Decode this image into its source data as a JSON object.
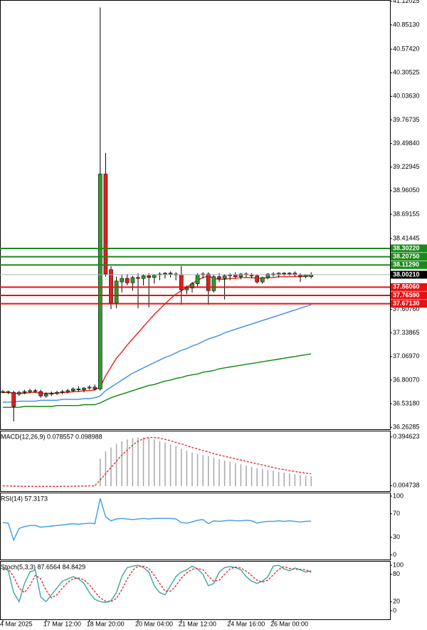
{
  "chart_data": [
    {
      "type": "candlestick",
      "categories": [
        "4 Mar 2025",
        null,
        null,
        null,
        null,
        null,
        null,
        null,
        "17 Mar 12:00",
        null,
        null,
        null,
        null,
        null,
        null,
        null,
        "18 Mar 20:00",
        null,
        null,
        null,
        null,
        null,
        null,
        null,
        null,
        "20 Mar 04:00",
        null,
        null,
        null,
        null,
        null,
        null,
        null,
        "21 Mar 12:00",
        null,
        null,
        null,
        null,
        null,
        null,
        null,
        null,
        "24 Mar 16:00",
        null,
        null,
        null,
        null,
        null,
        null,
        null,
        "26 Mar 00:00",
        null,
        null,
        null,
        null,
        null,
        null,
        null
      ],
      "open": [
        36.67,
        36.66,
        36.66,
        36.64,
        36.66,
        36.67,
        36.68,
        36.67,
        36.62,
        36.64,
        36.65,
        36.66,
        36.67,
        36.68,
        36.7,
        36.69,
        36.71,
        36.72,
        36.7,
        39.15,
        38.06,
        37.68,
        37.92,
        37.96,
        37.91,
        37.97,
        37.96,
        37.99,
        37.97,
        38.0,
        38.01,
        38.02,
        38.01,
        38.0,
        37.83,
        37.85,
        37.9,
        38.0,
        38.01,
        37.82,
        37.98,
        37.96,
        37.99,
        38.0,
        37.98,
        38.01,
        38.0,
        37.99,
        37.92,
        37.97,
        38.01,
        38.0,
        38.02,
        38.01,
        38.02,
        38.0,
        37.98,
        37.98
      ],
      "high": [
        36.69,
        36.68,
        36.68,
        36.68,
        36.69,
        36.7,
        36.7,
        36.69,
        36.66,
        36.67,
        36.68,
        36.69,
        36.7,
        36.72,
        36.73,
        36.72,
        36.74,
        36.75,
        41.05,
        39.39,
        38.1,
        37.98,
        38.0,
        38.01,
        37.99,
        38.02,
        38.01,
        38.02,
        38.01,
        38.03,
        38.03,
        38.04,
        38.03,
        38.1,
        37.88,
        37.92,
        38.02,
        38.03,
        38.03,
        38.0,
        38.02,
        38.01,
        38.02,
        38.03,
        38.02,
        38.03,
        38.02,
        38.01,
        37.98,
        38.02,
        38.03,
        38.03,
        38.03,
        38.03,
        38.04,
        38.02,
        38.01,
        38.03
      ],
      "low": [
        36.65,
        36.64,
        36.33,
        36.62,
        36.64,
        36.65,
        36.66,
        36.6,
        36.6,
        36.62,
        36.63,
        36.64,
        36.65,
        36.66,
        36.67,
        36.66,
        36.69,
        36.68,
        36.68,
        37.98,
        37.61,
        37.62,
        37.8,
        37.88,
        37.82,
        37.62,
        37.88,
        37.63,
        37.9,
        37.94,
        37.96,
        37.97,
        37.94,
        37.66,
        37.78,
        37.8,
        37.86,
        37.96,
        37.66,
        37.8,
        37.92,
        37.72,
        37.94,
        37.96,
        37.95,
        37.97,
        37.96,
        37.9,
        37.9,
        37.95,
        37.98,
        37.97,
        37.99,
        37.99,
        37.98,
        37.92,
        37.96,
        37.96
      ],
      "close": [
        36.66,
        36.67,
        36.5,
        36.66,
        36.67,
        36.68,
        36.67,
        36.62,
        36.64,
        36.65,
        36.66,
        36.67,
        36.68,
        36.7,
        36.69,
        36.71,
        36.72,
        36.7,
        39.15,
        38.01,
        37.68,
        37.93,
        37.96,
        37.91,
        37.97,
        37.96,
        37.99,
        37.97,
        38.0,
        38.01,
        38.02,
        38.01,
        38.0,
        37.83,
        37.85,
        37.9,
        38.0,
        38.01,
        37.82,
        37.98,
        37.96,
        37.99,
        38.0,
        37.98,
        38.01,
        38.0,
        37.99,
        37.92,
        37.97,
        38.01,
        38.0,
        38.02,
        38.01,
        38.02,
        38.0,
        37.98,
        38.0,
        38.0021
      ],
      "up_color": "#2e9e2e",
      "down_color": "#e02020",
      "lines": [
        {
          "color": "#e8201a",
          "values": [
            36.66,
            36.66,
            36.65,
            36.65,
            36.65,
            36.66,
            36.66,
            36.65,
            36.65,
            36.65,
            36.65,
            36.66,
            36.66,
            36.67,
            36.67,
            36.68,
            36.68,
            36.69,
            36.72,
            36.85,
            36.95,
            37.05,
            37.12,
            37.2,
            37.27,
            37.34,
            37.41,
            37.48,
            37.55,
            37.61,
            37.67,
            37.73,
            37.78,
            37.82,
            37.86,
            37.9,
            37.94,
            37.97,
            37.99,
            37.96,
            37.95,
            37.95,
            37.96,
            37.96,
            37.97,
            37.97,
            37.97,
            37.96,
            37.96,
            37.97,
            37.97,
            37.98,
            37.98,
            37.98,
            37.98,
            37.98,
            37.99,
            37.99
          ]
        },
        {
          "color": "#3a8ee6",
          "values": [
            36.55,
            36.55,
            36.55,
            36.56,
            36.56,
            36.56,
            36.56,
            36.57,
            36.57,
            36.57,
            36.57,
            36.58,
            36.58,
            36.58,
            36.58,
            36.59,
            36.59,
            36.6,
            36.62,
            36.68,
            36.72,
            36.76,
            36.8,
            36.84,
            36.88,
            36.91,
            36.94,
            36.97,
            37.0,
            37.03,
            37.06,
            37.08,
            37.11,
            37.14,
            37.16,
            37.19,
            37.21,
            37.24,
            37.27,
            37.29,
            37.31,
            37.34,
            37.36,
            37.38,
            37.4,
            37.42,
            37.44,
            37.46,
            37.48,
            37.5,
            37.52,
            37.54,
            37.56,
            37.58,
            37.6,
            37.62,
            37.64,
            37.66
          ]
        },
        {
          "color": "#0e8a0e",
          "values": [
            36.49,
            36.49,
            36.49,
            36.49,
            36.5,
            36.5,
            36.5,
            36.5,
            36.5,
            36.5,
            36.51,
            36.51,
            36.51,
            36.51,
            36.51,
            36.52,
            36.52,
            36.52,
            36.54,
            36.57,
            36.6,
            36.62,
            36.64,
            36.66,
            36.68,
            36.7,
            36.72,
            36.74,
            36.75,
            36.77,
            36.79,
            36.8,
            36.82,
            36.83,
            36.85,
            36.86,
            36.87,
            36.89,
            36.9,
            36.91,
            36.93,
            36.94,
            36.95,
            36.96,
            36.97,
            36.98,
            36.99,
            37.0,
            37.01,
            37.02,
            37.03,
            37.04,
            37.05,
            37.06,
            37.07,
            37.08,
            37.09,
            37.1
          ]
        }
      ],
      "levels": [
        {
          "value": 38.3022,
          "label": "38.30220",
          "color": "#1a8a1a"
        },
        {
          "value": 38.2075,
          "label": "38.20750",
          "color": "#1a8a1a"
        },
        {
          "value": 38.1129,
          "label": "38.11290",
          "color": "#1a8a1a"
        },
        {
          "value": 38.0021,
          "label": "38.00210",
          "color": "#000000",
          "line_color": "#b0b0b0"
        },
        {
          "value": 37.8606,
          "label": "37.86060",
          "color": "#e81010"
        },
        {
          "value": 37.7659,
          "label": "37.76590",
          "color": "#e81010"
        },
        {
          "value": 37.6713,
          "label": "37.67130",
          "color": "#e81010"
        }
      ],
      "ylim": [
        36.24,
        41.135
      ],
      "yticks": [
        41.12025,
        {
          "value": 40.8513,
          "label": "40.85130"
        },
        {
          "value": 40.5742,
          "label": "40.57420"
        },
        40.30525,
        {
          "value": 40.0363,
          "label": "40.03630"
        },
        39.76735,
        {
          "value": 39.4984,
          "label": "39.49840"
        },
        39.22945,
        {
          "value": 38.9605,
          "label": "38.96050"
        },
        38.69155,
        38.41445,
        {
          "value": 37.6076,
          "label": "37.60760"
        },
        37.33865,
        {
          "value": 37.0697,
          "label": "37.06970"
        },
        {
          "value": 36.8007,
          "label": "36.80070"
        },
        {
          "value": 36.5318,
          "label": "36.53180"
        },
        36.26285
      ]
    },
    {
      "type": "macd",
      "title": "MACD(12,26,9) 0.078557 0.098988",
      "series": [
        {
          "kind": "bar",
          "color": "#a8a8a8",
          "values": [
            0.003,
            0.002,
            -0.005,
            -0.006,
            -0.004,
            -0.003,
            -0.002,
            -0.003,
            -0.003,
            -0.002,
            -0.001,
            0.0,
            0.001,
            0.002,
            0.003,
            0.004,
            0.005,
            0.006,
            0.22,
            0.28,
            0.31,
            0.34,
            0.36,
            0.375,
            0.385,
            0.39,
            0.39,
            0.385,
            0.375,
            0.36,
            0.35,
            0.335,
            0.32,
            0.3,
            0.285,
            0.27,
            0.26,
            0.25,
            0.24,
            0.23,
            0.215,
            0.205,
            0.195,
            0.185,
            0.175,
            0.165,
            0.155,
            0.145,
            0.138,
            0.13,
            0.123,
            0.115,
            0.108,
            0.101,
            0.095,
            0.089,
            0.083,
            0.078557
          ]
        },
        {
          "kind": "line",
          "style": "dashed",
          "color": "#e03030",
          "values": [
            0.002,
            0.002,
            0.001,
            0.0,
            -0.001,
            -0.002,
            -0.002,
            -0.002,
            -0.002,
            -0.002,
            -0.002,
            -0.001,
            -0.001,
            0.0,
            0.001,
            0.001,
            0.002,
            0.003,
            0.05,
            0.1,
            0.15,
            0.2,
            0.25,
            0.29,
            0.33,
            0.36,
            0.38,
            0.39,
            0.39,
            0.385,
            0.375,
            0.365,
            0.35,
            0.34,
            0.325,
            0.31,
            0.3,
            0.285,
            0.275,
            0.26,
            0.25,
            0.24,
            0.23,
            0.22,
            0.21,
            0.2,
            0.19,
            0.18,
            0.17,
            0.16,
            0.15,
            0.14,
            0.133,
            0.125,
            0.118,
            0.111,
            0.105,
            0.098988
          ]
        }
      ],
      "ylim": [
        -0.04,
        0.445
      ],
      "yticks": [
        0.394623,
        0.004738
      ]
    },
    {
      "type": "oscillator",
      "title": "RSI(14) 57.3173",
      "series": [
        {
          "kind": "line",
          "color": "#3a9ee6",
          "values": [
            55,
            54,
            25,
            45,
            48,
            50,
            50,
            47,
            48,
            49,
            50,
            51,
            52,
            53,
            52,
            53,
            54,
            53,
            96,
            65,
            58,
            61,
            62,
            61,
            60,
            61,
            62,
            61,
            62,
            62,
            62,
            62,
            61,
            55,
            54,
            56,
            59,
            60,
            53,
            58,
            57,
            58,
            59,
            58,
            58,
            59,
            58,
            54,
            56,
            57,
            57,
            58,
            57,
            58,
            57,
            56,
            57,
            57.3173
          ]
        }
      ],
      "ylim": [
        -8,
        106
      ],
      "yticks": [
        100,
        70,
        30,
        0
      ]
    },
    {
      "type": "oscillator",
      "title": "Stoch(5,3,3) 87.6564 84.8429",
      "series": [
        {
          "kind": "line",
          "color": "#3aa7a0",
          "values": [
            95,
            88,
            40,
            20,
            60,
            85,
            90,
            30,
            20,
            35,
            50,
            65,
            70,
            75,
            70,
            60,
            40,
            25,
            20,
            18,
            22,
            40,
            75,
            95,
            98,
            100,
            95,
            85,
            55,
            40,
            35,
            55,
            75,
            85,
            90,
            98,
            92,
            80,
            55,
            60,
            85,
            95,
            97,
            95,
            90,
            75,
            65,
            60,
            65,
            75,
            98,
            100,
            92,
            88,
            94,
            90,
            85,
            87.6564
          ]
        },
        {
          "kind": "line",
          "style": "dashed",
          "color": "#e03030",
          "values": [
            90,
            92,
            75,
            50,
            40,
            55,
            78,
            70,
            45,
            28,
            35,
            50,
            62,
            70,
            72,
            68,
            57,
            42,
            28,
            21,
            20,
            27,
            46,
            70,
            89,
            98,
            98,
            93,
            78,
            60,
            43,
            43,
            55,
            72,
            83,
            91,
            93,
            90,
            76,
            65,
            67,
            80,
            92,
            96,
            94,
            87,
            77,
            67,
            63,
            67,
            79,
            91,
            97,
            93,
            91,
            91,
            90,
            84.8429
          ]
        }
      ],
      "ylim": [
        -19,
        109.5
      ],
      "yticks": [
        100,
        80,
        20,
        0
      ]
    }
  ]
}
